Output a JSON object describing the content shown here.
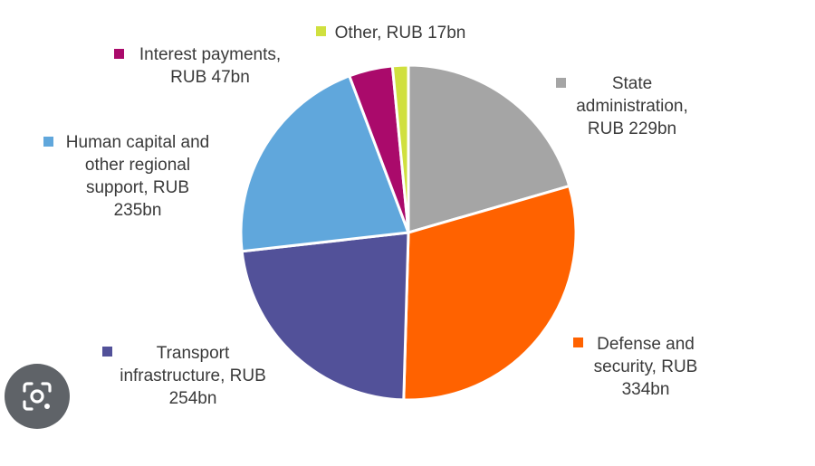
{
  "chart_data": {
    "type": "pie",
    "title": "",
    "slices": [
      {
        "label": "State administration, RUB 229bn",
        "value": 229,
        "color": "#a5a5a5",
        "label_lines": [
          "State",
          "administration,",
          "RUB 229bn"
        ]
      },
      {
        "label": "Defense and security, RUB 334bn",
        "value": 334,
        "color": "#ff6200",
        "label_lines": [
          "Defense and",
          "security, RUB",
          "334bn"
        ]
      },
      {
        "label": "Transport infrastructure, RUB 254bn",
        "value": 254,
        "color": "#525199",
        "label_lines": [
          "Transport",
          "infrastructure, RUB",
          "254bn"
        ]
      },
      {
        "label": "Human capital and other regional support, RUB 235bn",
        "value": 235,
        "color": "#60a7dc",
        "label_lines": [
          "Human capital and",
          "other regional",
          "support, RUB",
          "235bn"
        ]
      },
      {
        "label": "Interest payments, RUB 47bn",
        "value": 47,
        "color": "#aa0a6b",
        "label_lines": [
          "Interest payments,",
          "RUB 47bn"
        ]
      },
      {
        "label": "Other, RUB 17bn",
        "value": 17,
        "color": "#d0e03f",
        "label_lines": [
          "Other, RUB 17bn"
        ]
      }
    ],
    "legend": "labels-around-pie"
  },
  "lens_button": {
    "icon": "image-search-icon",
    "color": "#5f6368"
  }
}
